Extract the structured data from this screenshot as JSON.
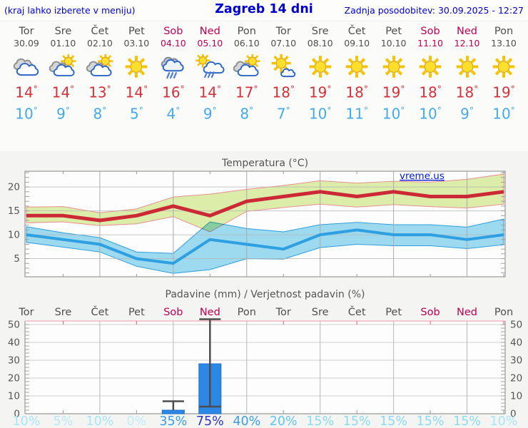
{
  "header": {
    "left": "(kraj lahko izberete v meniju)",
    "title": "Zagreb 14 dni",
    "right": "Zadnja posodobitev: 30.09.2025 - 12:27"
  },
  "degree_symbol": "°",
  "watermark": "vreme.us",
  "colors": {
    "max_temp": "#d4323a",
    "min_temp": "#45aaec",
    "weekday": "#4f4f4f",
    "weekend": "#c00051",
    "max_line": "#cc2936",
    "min_line": "#2e9fe0",
    "max_band": "#dcedaa",
    "min_band": "#9edcf2",
    "max_band_edge": "#e98f8f",
    "min_band_edge": "#2f9fdf",
    "bar_fill": "#2d88e5",
    "bar_edge": "#1f6fc4",
    "whisker": "#4d4d4d",
    "axis": "#999999",
    "precip_top_axis": "#f2a9ba",
    "precip_top_tick": "#e0597f",
    "label_gray": "#555555",
    "link_blue": "#0019d8"
  },
  "days": [
    {
      "name": "Tor",
      "date": "30.09",
      "weekend": false,
      "icon": "oblacno",
      "tmax": "14",
      "tmin": "10",
      "pop": "10%",
      "pop_color": "#a9e5f7"
    },
    {
      "name": "Sre",
      "date": "01.10",
      "weekend": false,
      "icon": "delno",
      "tmax": "14",
      "tmin": "9",
      "pop": "5%",
      "pop_color": "#b6e9f8"
    },
    {
      "name": "Čet",
      "date": "02.10",
      "weekend": false,
      "icon": "delno",
      "tmax": "13",
      "tmin": "8",
      "pop": "10%",
      "pop_color": "#a9e5f7"
    },
    {
      "name": "Pet",
      "date": "03.10",
      "weekend": false,
      "icon": "sonce",
      "tmax": "14",
      "tmin": "5",
      "pop": "0%",
      "pop_color": "#c0edfa"
    },
    {
      "name": "Sob",
      "date": "04.10",
      "weekend": true,
      "icon": "dez",
      "tmax": "16",
      "tmin": "4",
      "pop": "35%",
      "pop_color": "#3d9ee7"
    },
    {
      "name": "Ned",
      "date": "05.10",
      "weekend": true,
      "icon": "sonce-dez",
      "tmax": "14",
      "tmin": "9",
      "pop": "75%",
      "pop_color": "#2b36c9"
    },
    {
      "name": "Pon",
      "date": "06.10",
      "weekend": false,
      "icon": "delno",
      "tmax": "17",
      "tmin": "8",
      "pop": "40%",
      "pop_color": "#3d9ee7"
    },
    {
      "name": "Tor",
      "date": "07.10",
      "weekend": false,
      "icon": "vecinoma-sonce",
      "tmax": "18",
      "tmin": "7",
      "pop": "20%",
      "pop_color": "#63c6ef"
    },
    {
      "name": "Sre",
      "date": "08.10",
      "weekend": false,
      "icon": "sonce",
      "tmax": "19",
      "tmin": "10",
      "pop": "15%",
      "pop_color": "#8cdaf3"
    },
    {
      "name": "Čet",
      "date": "09.10",
      "weekend": false,
      "icon": "sonce",
      "tmax": "18",
      "tmin": "11",
      "pop": "15%",
      "pop_color": "#8cdaf3"
    },
    {
      "name": "Pet",
      "date": "10.10",
      "weekend": false,
      "icon": "sonce",
      "tmax": "19",
      "tmin": "10",
      "pop": "15%",
      "pop_color": "#8cdaf3"
    },
    {
      "name": "Sob",
      "date": "11.10",
      "weekend": true,
      "icon": "sonce",
      "tmax": "18",
      "tmin": "10",
      "pop": "15%",
      "pop_color": "#8cdaf3"
    },
    {
      "name": "Ned",
      "date": "12.10",
      "weekend": true,
      "icon": "sonce",
      "tmax": "18",
      "tmin": "9",
      "pop": "15%",
      "pop_color": "#8cdaf3"
    },
    {
      "name": "Pon",
      "date": "13.10",
      "weekend": false,
      "icon": "sonce",
      "tmax": "19",
      "tmin": "10",
      "pop": "10%",
      "pop_color": "#a9e5f7"
    }
  ],
  "chart_data": [
    {
      "type": "line",
      "title": "Temperatura (°C)",
      "x_labels": [
        "Tor",
        "Sre",
        "Čet",
        "Pet",
        "Sob",
        "Ned",
        "Pon",
        "Tor",
        "Sre",
        "Čet",
        "Pet",
        "Sob",
        "Ned",
        "Pon"
      ],
      "ylim": [
        1.2,
        23.3
      ],
      "yticks": [
        5,
        10,
        15,
        20
      ],
      "grid": true,
      "series": [
        {
          "name": "max",
          "values": [
            14,
            14,
            13,
            14,
            16,
            14,
            17,
            18,
            19,
            18,
            19,
            18,
            18,
            19
          ],
          "band_hi": [
            15.8,
            15.9,
            14.6,
            15.4,
            17.9,
            18.5,
            19.5,
            20.3,
            21.3,
            20.8,
            21.2,
            21.0,
            21.6,
            22.7
          ],
          "band_lo": [
            12.5,
            12.7,
            11.9,
            12.3,
            13.8,
            10.6,
            14.9,
            15.7,
            16.4,
            15.8,
            16.3,
            15.9,
            15.6,
            16.4
          ]
        },
        {
          "name": "min",
          "values": [
            10,
            9,
            8,
            5,
            4,
            9,
            8,
            7,
            10,
            11,
            10,
            10,
            9,
            10
          ],
          "band_hi": [
            11.7,
            10.4,
            9.4,
            6.4,
            6.1,
            12.7,
            11.3,
            10.6,
            12.1,
            12.6,
            12.1,
            12.1,
            11.6,
            13.3
          ],
          "band_lo": [
            8.4,
            7.4,
            6.4,
            3.4,
            1.9,
            2.7,
            5.0,
            4.9,
            7.3,
            8.0,
            7.7,
            7.7,
            7.1,
            7.9
          ]
        }
      ]
    },
    {
      "type": "bar",
      "title": "Padavine (mm) / Verjetnost padavin (%)",
      "x_labels": [
        "Tor",
        "Sre",
        "Čet",
        "Pet",
        "Sob",
        "Ned",
        "Pon",
        "Tor",
        "Sre",
        "Čet",
        "Pet",
        "Sob",
        "Ned",
        "Pon"
      ],
      "ylim": [
        0,
        52
      ],
      "yticks": [
        0,
        10,
        20,
        30,
        40,
        50
      ],
      "grid": true,
      "values": [
        0,
        0,
        0,
        0,
        2,
        28,
        0,
        0,
        0,
        0,
        0,
        0,
        0,
        0
      ],
      "whiskers": [
        {
          "day": 4,
          "lo": 2,
          "hi": 7,
          "caps": [
            "hi"
          ]
        },
        {
          "day": 5,
          "lo": 4,
          "hi": 53,
          "caps": [
            "hi",
            "lo"
          ]
        }
      ],
      "probabilities": [
        "10%",
        "5%",
        "10%",
        "0%",
        "35%",
        "75%",
        "40%",
        "20%",
        "15%",
        "15%",
        "15%",
        "15%",
        "15%",
        "10%"
      ]
    }
  ]
}
